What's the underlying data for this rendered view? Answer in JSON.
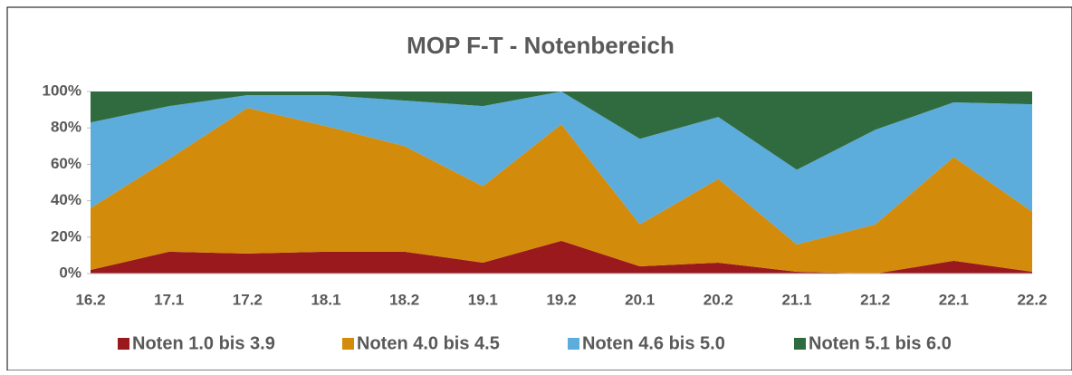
{
  "chart_data": {
    "type": "area",
    "stacked": true,
    "title": "MOP F-T - Notenbereich",
    "categories": [
      "16.2",
      "17.1",
      "17.2",
      "18.1",
      "18.2",
      "19.1",
      "19.2",
      "20.1",
      "20.2",
      "21.1",
      "21.2",
      "22.1",
      "22.2"
    ],
    "series": [
      {
        "name": "Noten 1.0 bis 3.9",
        "color": "#99191d",
        "values": [
          2,
          12,
          11,
          12,
          12,
          6,
          18,
          4,
          6,
          1,
          0,
          7,
          1
        ]
      },
      {
        "name": "Noten 4.0 bis 4.5",
        "color": "#d38b0b",
        "values": [
          34,
          51,
          80,
          69,
          58,
          42,
          64,
          23,
          46,
          15,
          27,
          57,
          33
        ]
      },
      {
        "name": "Noten 4.6 bis 5.0",
        "color": "#5cacdc",
        "values": [
          47,
          29,
          7,
          17,
          25,
          44,
          18,
          47,
          34,
          41,
          52,
          30,
          59
        ]
      },
      {
        "name": "Noten 5.1 bis 6.0",
        "color": "#2f6b3f",
        "values": [
          17,
          8,
          2,
          2,
          5,
          8,
          0,
          26,
          14,
          43,
          21,
          6,
          7
        ]
      }
    ],
    "ylim": [
      0,
      100
    ],
    "yticks": [
      {
        "value": 0,
        "label": "0%"
      },
      {
        "value": 20,
        "label": "20%"
      },
      {
        "value": 40,
        "label": "40%"
      },
      {
        "value": 60,
        "label": "60%"
      },
      {
        "value": 80,
        "label": "80%"
      },
      {
        "value": 100,
        "label": "100%"
      }
    ],
    "legend": "bottom"
  }
}
